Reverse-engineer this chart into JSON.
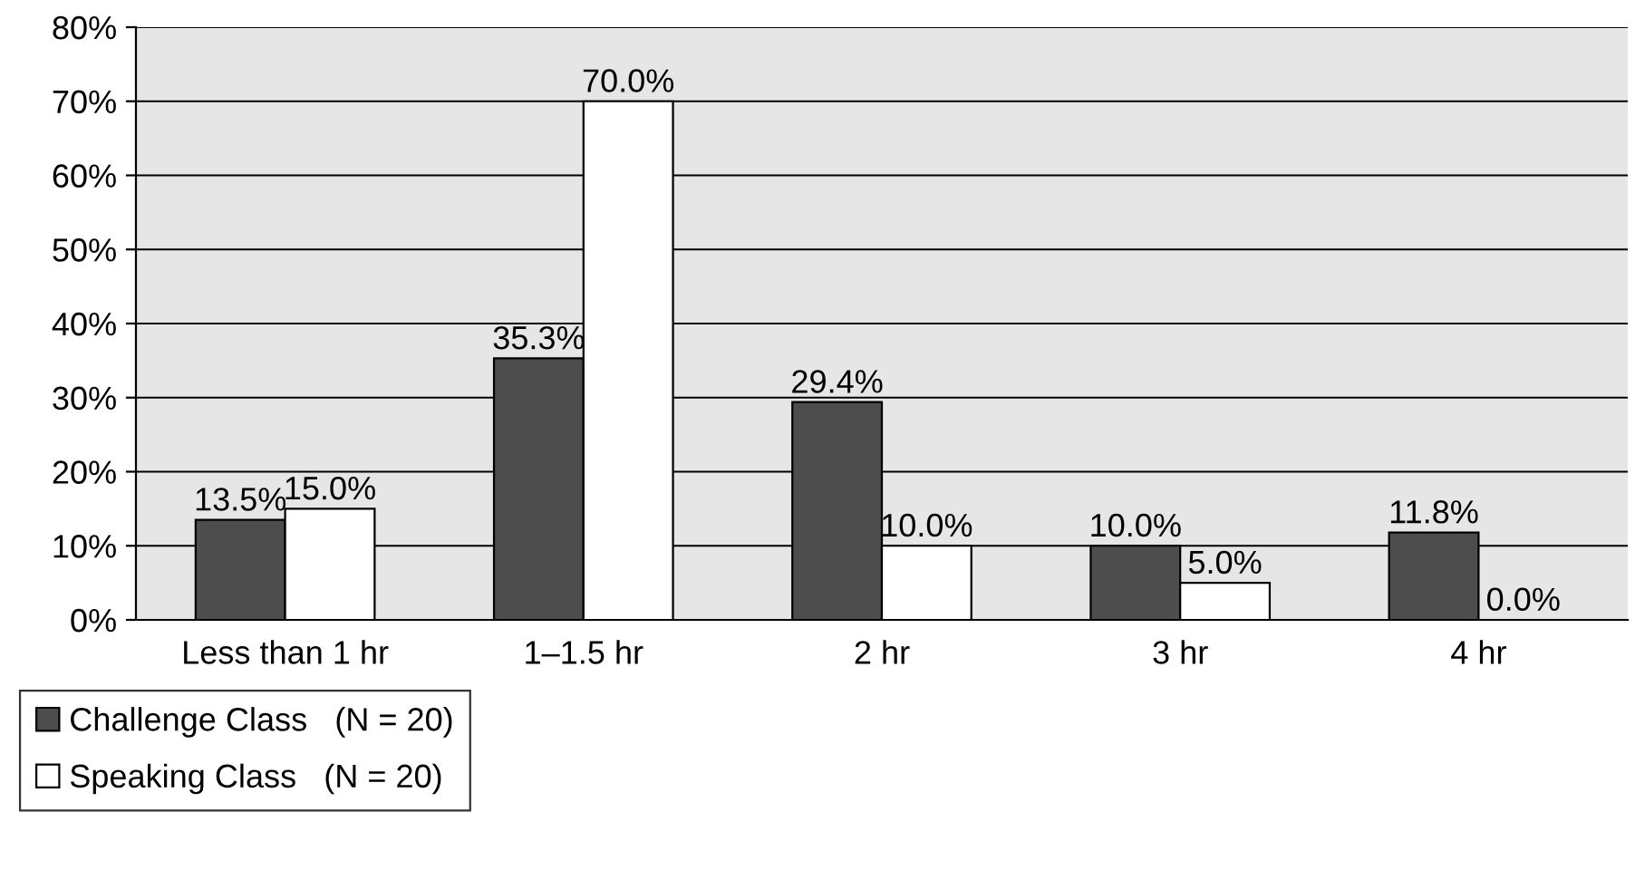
{
  "chart_data": {
    "type": "bar",
    "categories": [
      "Less than 1 hr",
      "1–1.5 hr",
      "2 hr",
      "3 hr",
      "4 hr"
    ],
    "series": [
      {
        "name": "Challenge Class   (N = 20)",
        "color": "#4d4d4d",
        "values": [
          13.5,
          35.3,
          29.4,
          10.0,
          11.8
        ],
        "value_labels": [
          "13.5%",
          "35.3%",
          "29.4%",
          "10.0%",
          "11.8%"
        ]
      },
      {
        "name": "Speaking Class   (N = 20)",
        "color": "#ffffff",
        "values": [
          15.0,
          70.0,
          10.0,
          5.0,
          0.0
        ],
        "value_labels": [
          "15.0%",
          "70.0%",
          "10.0%",
          "5.0%",
          "0.0%"
        ]
      }
    ],
    "ylim": [
      0,
      80
    ],
    "yticks": [
      {
        "value": 0,
        "label": "0%"
      },
      {
        "value": 10,
        "label": "10%"
      },
      {
        "value": 20,
        "label": "20%"
      },
      {
        "value": 30,
        "label": "30%"
      },
      {
        "value": 40,
        "label": "40%"
      },
      {
        "value": 50,
        "label": "50%"
      },
      {
        "value": 60,
        "label": "60%"
      },
      {
        "value": 70,
        "label": "70%"
      },
      {
        "value": 80,
        "label": "80%"
      }
    ],
    "grid": "y",
    "legend": "bottom left"
  }
}
